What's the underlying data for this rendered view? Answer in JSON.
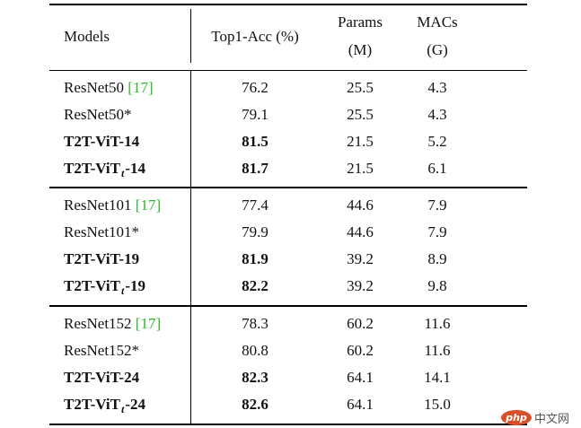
{
  "table": {
    "headers": {
      "models": "Models",
      "top1": "Top1-Acc (%)",
      "params_line1": "Params",
      "params_line2": "(M)",
      "macs_line1": "MACs",
      "macs_line2": "(G)"
    },
    "groups": [
      {
        "rows": [
          {
            "model": "ResNet50",
            "cite": "[17]",
            "suffix": "",
            "sub": "",
            "bold": false,
            "top1": "76.2",
            "params": "25.5",
            "macs": "4.3"
          },
          {
            "model": "ResNet50*",
            "cite": "",
            "suffix": "",
            "sub": "",
            "bold": false,
            "top1": "79.1",
            "params": "25.5",
            "macs": "4.3"
          },
          {
            "model": "T2T-ViT-14",
            "cite": "",
            "suffix": "",
            "sub": "",
            "bold": true,
            "top1": "81.5",
            "params": "21.5",
            "macs": "5.2"
          },
          {
            "model": "T2T-ViT",
            "cite": "",
            "suffix": "-14",
            "sub": "t",
            "bold": true,
            "top1": "81.7",
            "params": "21.5",
            "macs": "6.1"
          }
        ]
      },
      {
        "rows": [
          {
            "model": "ResNet101",
            "cite": "[17]",
            "suffix": "",
            "sub": "",
            "bold": false,
            "top1": "77.4",
            "params": "44.6",
            "macs": "7.9"
          },
          {
            "model": "ResNet101*",
            "cite": "",
            "suffix": "",
            "sub": "",
            "bold": false,
            "top1": "79.9",
            "params": "44.6",
            "macs": "7.9"
          },
          {
            "model": "T2T-ViT-19",
            "cite": "",
            "suffix": "",
            "sub": "",
            "bold": true,
            "top1": "81.9",
            "params": "39.2",
            "macs": "8.9"
          },
          {
            "model": "T2T-ViT",
            "cite": "",
            "suffix": "-19",
            "sub": "t",
            "bold": true,
            "top1": "82.2",
            "params": "39.2",
            "macs": "9.8"
          }
        ]
      },
      {
        "rows": [
          {
            "model": "ResNet152",
            "cite": "[17]",
            "suffix": "",
            "sub": "",
            "bold": false,
            "top1": "78.3",
            "params": "60.2",
            "macs": "11.6"
          },
          {
            "model": "ResNet152*",
            "cite": "",
            "suffix": "",
            "sub": "",
            "bold": false,
            "top1": "80.8",
            "params": "60.2",
            "macs": "11.6"
          },
          {
            "model": "T2T-ViT-24",
            "cite": "",
            "suffix": "",
            "sub": "",
            "bold": true,
            "top1": "82.3",
            "params": "64.1",
            "macs": "14.1"
          },
          {
            "model": "T2T-ViT",
            "cite": "",
            "suffix": "-24",
            "sub": "t",
            "bold": true,
            "top1": "82.6",
            "params": "64.1",
            "macs": "15.0"
          }
        ]
      }
    ]
  },
  "colors": {
    "citation": "#2eb82e",
    "rule": "#000000",
    "watermark_logo": "#d94f2b"
  },
  "watermark": {
    "logo_text": "php",
    "site_text": "中文网"
  }
}
